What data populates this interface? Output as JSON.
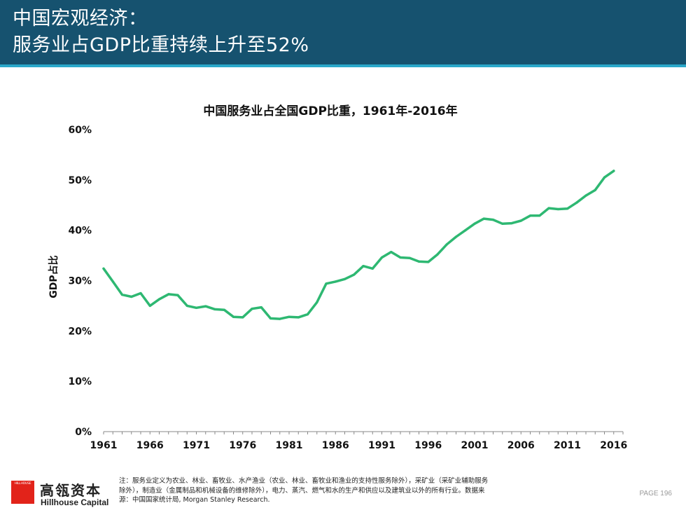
{
  "header": {
    "title_line1": "中国宏观经济：",
    "title_line2": "服务业占GDP比重持续上升至52%"
  },
  "colors": {
    "header_bg": "#16526f",
    "header_stripe": "#2aa8c9",
    "series": "#2eb872",
    "logo": "#e2231a"
  },
  "chart_data": {
    "type": "line",
    "title": "中国服务业占全国GDP比重，1961年-2016年",
    "ylabel": "GDP占比",
    "xlabel": "",
    "ylim": [
      0,
      60
    ],
    "yticks": [
      0,
      10,
      20,
      30,
      40,
      50,
      60
    ],
    "ytick_labels": [
      "0%",
      "10%",
      "20%",
      "30%",
      "40%",
      "50%",
      "60%"
    ],
    "xlim": [
      1961,
      2017
    ],
    "xticks": [
      1961,
      1966,
      1971,
      1976,
      1981,
      1986,
      1991,
      1996,
      2001,
      2006,
      2011,
      2016
    ],
    "xtick_labels": [
      "1961",
      "1966",
      "1971",
      "1976",
      "1981",
      "1986",
      "1991",
      "1996",
      "2001",
      "2006",
      "2011",
      "2016"
    ],
    "grid": false,
    "legend": "none",
    "x": [
      1961,
      1962,
      1963,
      1964,
      1965,
      1966,
      1967,
      1968,
      1969,
      1970,
      1971,
      1972,
      1973,
      1974,
      1975,
      1976,
      1977,
      1978,
      1979,
      1980,
      1981,
      1982,
      1983,
      1984,
      1985,
      1986,
      1987,
      1988,
      1989,
      1990,
      1991,
      1992,
      1993,
      1994,
      1995,
      1996,
      1997,
      1998,
      1999,
      2000,
      2001,
      2002,
      2003,
      2004,
      2005,
      2006,
      2007,
      2008,
      2009,
      2010,
      2011,
      2012,
      2013,
      2014,
      2015,
      2016
    ],
    "series": [
      {
        "values": [
          32.4,
          29.8,
          27.2,
          26.8,
          27.5,
          25.0,
          26.3,
          27.3,
          27.1,
          25.0,
          24.6,
          24.9,
          24.3,
          24.2,
          22.8,
          22.7,
          24.4,
          24.7,
          22.5,
          22.4,
          22.8,
          22.7,
          23.3,
          25.7,
          29.4,
          29.8,
          30.3,
          31.2,
          32.9,
          32.4,
          34.6,
          35.7,
          34.6,
          34.5,
          33.8,
          33.7,
          35.2,
          37.2,
          38.7,
          40.0,
          41.3,
          42.3,
          42.1,
          41.3,
          41.4,
          41.9,
          42.9,
          42.9,
          44.4,
          44.2,
          44.3,
          45.5,
          46.9,
          48.0,
          50.5,
          51.8
        ]
      }
    ]
  },
  "footer": {
    "logo_text": "HILLHOUSE",
    "company_cn": "高瓴资本",
    "company_en": "Hillhouse Capital",
    "note_line1": "注：服务业定义为农业、林业、畜牧业、水产渔业（农业、林业、畜牧业和渔业的支持性服务除外），采矿业（采矿业辅助服务",
    "note_line2": "除外），制造业（金属制品和机械设备的维修除外），电力、蒸汽、燃气和水的生产和供应以及建筑业以外的所有行业。数据来",
    "note_line3": "源：中国国家统计局, Morgan Stanley Research.",
    "page_label": "PAGE 196"
  }
}
